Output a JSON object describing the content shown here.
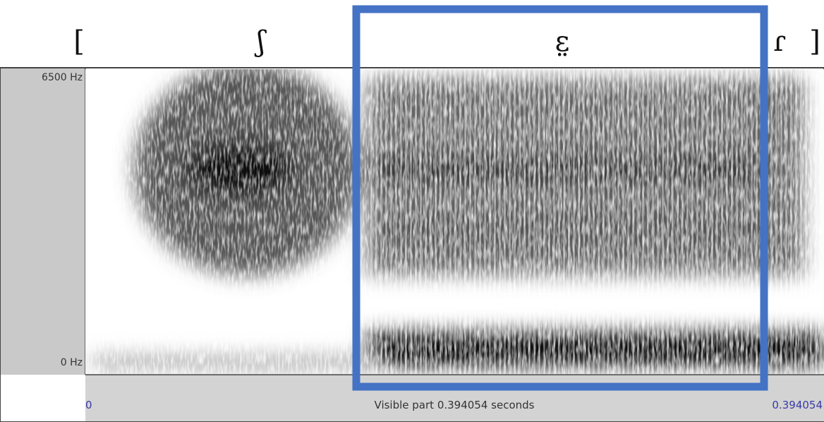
{
  "transcription": {
    "open_bracket": "[",
    "segment_1": "ʃ",
    "segment_2": "ɛ̤",
    "segment_3": "ɾ",
    "close_bracket": "]"
  },
  "spectrogram": {
    "freq_top_label": "6500 Hz",
    "freq_bottom_label": "0 Hz",
    "time_start_label": "0",
    "visible_part_label": "Visible part 0.394054 seconds",
    "time_end_label": "0.394054"
  }
}
